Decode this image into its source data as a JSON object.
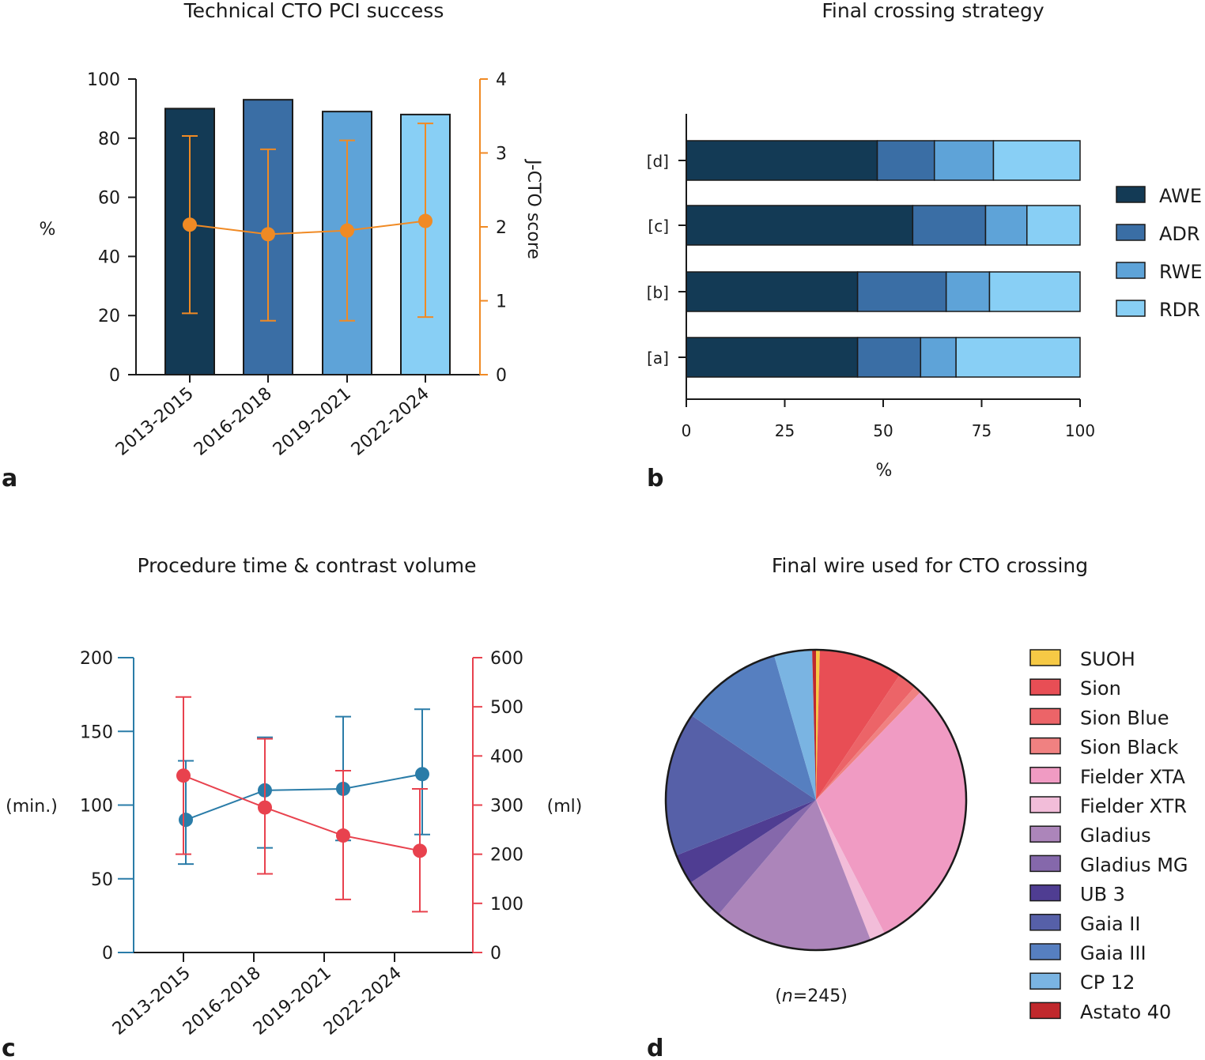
{
  "chart_data": [
    {
      "panel": "a",
      "type": "bar",
      "title": "Technical CTO PCI success",
      "categories": [
        "2013-2015",
        "2016-2018",
        "2019-2021",
        "2022-2024"
      ],
      "values": [
        90,
        93,
        89,
        88
      ],
      "bar_colors": [
        "#133a55",
        "#3a6ea5",
        "#5ea3d8",
        "#88cff5"
      ],
      "ylabel": "%",
      "ylim": [
        0,
        100
      ],
      "yticks": [
        "0",
        "20",
        "40",
        "60",
        "80",
        "100"
      ],
      "overlay": {
        "type": "line",
        "name": "J-CTO score",
        "ylabel": "J-CTO score",
        "ylim": [
          0,
          4
        ],
        "yticks": [
          "0",
          "1",
          "2",
          "3",
          "4"
        ],
        "color": "#f08a24",
        "values": [
          2.03,
          1.9,
          1.95,
          2.08
        ],
        "err_low": [
          0.83,
          0.73,
          0.73,
          0.78
        ],
        "err_high": [
          3.23,
          3.05,
          3.17,
          3.4
        ]
      }
    },
    {
      "panel": "b",
      "type": "bar",
      "orientation": "horizontal-stacked",
      "title": "Final crossing strategy",
      "categories": [
        "[d]",
        "[c]",
        "[b]",
        "[a]"
      ],
      "series": [
        {
          "name": "AWE",
          "color": "#133a55",
          "values": [
            48.5,
            57.5,
            43.5,
            43.5
          ]
        },
        {
          "name": "ADR",
          "color": "#3a6ea5",
          "values": [
            14.5,
            18.5,
            22.5,
            16
          ]
        },
        {
          "name": "RWE",
          "color": "#5ea3d8",
          "values": [
            15,
            10.5,
            11,
            9
          ]
        },
        {
          "name": "RDR",
          "color": "#88cff5",
          "values": [
            22,
            13.5,
            23,
            31.5
          ]
        }
      ],
      "xlabel": "%",
      "xlim": [
        0,
        100
      ],
      "xticks": [
        "0",
        "25",
        "50",
        "75",
        "100"
      ],
      "legend_position": "right"
    },
    {
      "panel": "c",
      "type": "line",
      "title": "Procedure time & contrast volume",
      "categories": [
        "2013-2015",
        "2016-2018",
        "2019-2021",
        "2022-2024"
      ],
      "series": [
        {
          "name": "Procedure time",
          "axis": "left",
          "color": "#2a7ca8",
          "values": [
            90,
            110,
            111,
            121
          ],
          "err_low": [
            60,
            71,
            76,
            80
          ],
          "err_high": [
            130,
            146,
            160,
            165
          ]
        },
        {
          "name": "Contrast volume",
          "axis": "right",
          "color": "#e8424e",
          "values": [
            360,
            295,
            238,
            207
          ],
          "err_low": [
            200,
            160,
            108,
            83
          ],
          "err_high": [
            520,
            435,
            370,
            333
          ]
        }
      ],
      "ylabel_left": "(min.)",
      "ylim_left": [
        0,
        200
      ],
      "yticks_left": [
        "0",
        "50",
        "100",
        "150",
        "200"
      ],
      "ylabel_right": "(ml)",
      "ylim_right": [
        0,
        600
      ],
      "yticks_right": [
        "0",
        "100",
        "200",
        "300",
        "400",
        "500",
        "600"
      ]
    },
    {
      "panel": "d",
      "type": "pie",
      "title": "Final wire used for CTO crossing",
      "annotation_prefix": "(",
      "annotation_n": "n",
      "annotation_value": "=245)",
      "slices": [
        {
          "label": "SUOH",
          "value": 1,
          "color": "#f6c945"
        },
        {
          "label": "Sion",
          "value": 22,
          "color": "#e84e55"
        },
        {
          "label": "Sion Blue",
          "value": 5,
          "color": "#ec6468"
        },
        {
          "label": "Sion Black",
          "value": 2,
          "color": "#f08181"
        },
        {
          "label": "Fielder XTA",
          "value": 74,
          "color": "#f09bc3"
        },
        {
          "label": "Fielder XTR",
          "value": 4,
          "color": "#f2bdd9"
        },
        {
          "label": "Gladius",
          "value": 42,
          "color": "#ac85ba"
        },
        {
          "label": "Gladius MG",
          "value": 11,
          "color": "#8568ab"
        },
        {
          "label": "UB 3",
          "value": 8,
          "color": "#4f3d92"
        },
        {
          "label": "Gaia II",
          "value": 38,
          "color": "#5660a8"
        },
        {
          "label": "Gaia III",
          "value": 27,
          "color": "#567fc0"
        },
        {
          "label": "CP 12",
          "value": 10,
          "color": "#7ab4e2"
        },
        {
          "label": "Astato 40",
          "value": 1,
          "color": "#c0282c"
        }
      ]
    }
  ],
  "panel_letters": {
    "a": "a",
    "b": "b",
    "c": "c",
    "d": "d"
  }
}
